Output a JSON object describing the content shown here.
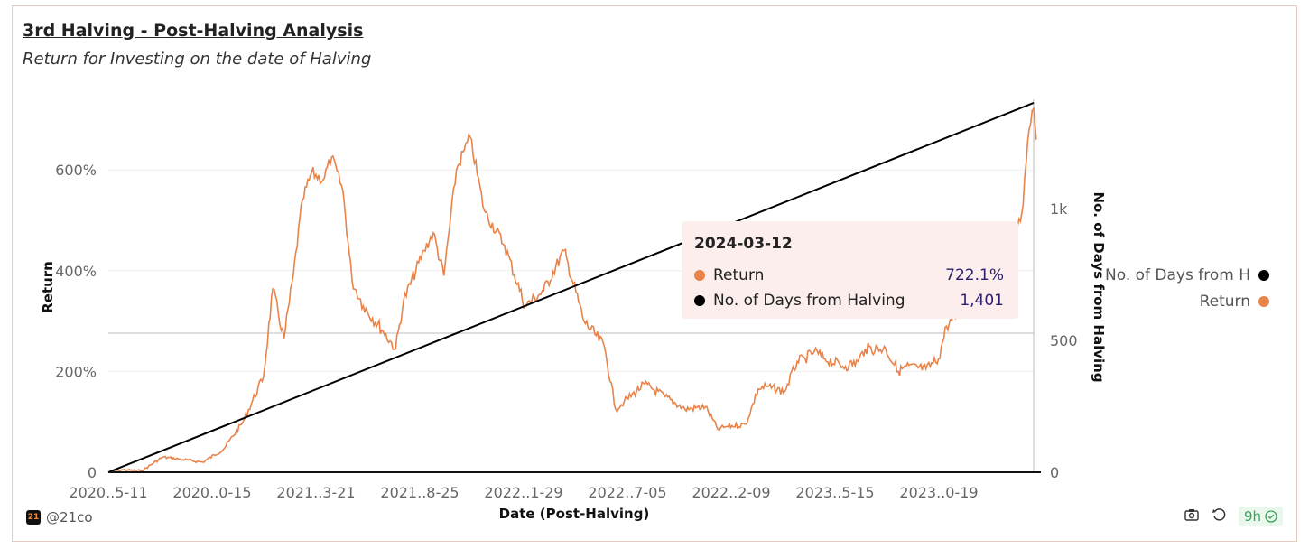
{
  "colors": {
    "return": "#e8834a",
    "days": "#000000",
    "tooltip_bg": "#fbeeec"
  },
  "header": {
    "title": "3rd Halving - Post-Halving Analysis",
    "subtitle": "Return for Investing on the date of Halving"
  },
  "tooltip": {
    "date": "2024-03-12",
    "rows": [
      {
        "label": "Return",
        "value": "722.1%",
        "color": "#e8834a"
      },
      {
        "label": "No. of Days from Halving",
        "value": "1,401",
        "color": "#000000"
      }
    ]
  },
  "legend": [
    {
      "label": "No. of Days from H",
      "color": "#000000"
    },
    {
      "label": "Return",
      "color": "#e8834a"
    }
  ],
  "footer": {
    "brand": "@21co",
    "brand_logo": "21",
    "refresh_badge": "9h",
    "icons": [
      "camera-icon",
      "refresh-icon",
      "check-circle-icon"
    ]
  },
  "chart_data": {
    "type": "line",
    "xlabel": "Date (Post-Halving)",
    "ylabel": "Return",
    "y2label": "No. of Days from Halving",
    "x_tick_labels": [
      "2020..5-11",
      "2020..0-15",
      "2021..3-21",
      "2021..8-25",
      "2022..1-29",
      "2022..7-05",
      "2022..2-09",
      "2023..5-15",
      "2023..0-19"
    ],
    "y_tick_labels": [
      "0",
      "200%",
      "400%",
      "600%"
    ],
    "y_ticks": [
      0,
      200,
      400,
      600
    ],
    "y2_tick_labels": [
      "0",
      "500",
      "1k"
    ],
    "y2_ticks": [
      0,
      500,
      1000
    ],
    "xlim": [
      "2020-05-11",
      "2024-03-16"
    ],
    "ylim": [
      0,
      720
    ],
    "y2lim": [
      0,
      1401
    ],
    "grid": true,
    "legend_position": "right",
    "series": [
      {
        "name": "Return",
        "axis": "left",
        "color": "#e8834a",
        "points": [
          [
            "2020-05-11",
            0
          ],
          [
            "2020-06-01",
            5
          ],
          [
            "2020-07-01",
            3
          ],
          [
            "2020-08-01",
            30
          ],
          [
            "2020-09-01",
            25
          ],
          [
            "2020-10-01",
            20
          ],
          [
            "2020-11-01",
            45
          ],
          [
            "2020-12-01",
            100
          ],
          [
            "2021-01-01",
            190
          ],
          [
            "2021-01-15",
            364
          ],
          [
            "2021-02-01",
            265
          ],
          [
            "2021-02-15",
            390
          ],
          [
            "2021-03-01",
            540
          ],
          [
            "2021-03-15",
            595
          ],
          [
            "2021-04-01",
            580
          ],
          [
            "2021-04-14",
            625
          ],
          [
            "2021-05-01",
            560
          ],
          [
            "2021-05-15",
            380
          ],
          [
            "2021-06-01",
            330
          ],
          [
            "2021-07-01",
            280
          ],
          [
            "2021-07-20",
            245
          ],
          [
            "2021-08-01",
            340
          ],
          [
            "2021-09-01",
            440
          ],
          [
            "2021-09-15",
            475
          ],
          [
            "2021-10-01",
            390
          ],
          [
            "2021-10-20",
            600
          ],
          [
            "2021-11-01",
            640
          ],
          [
            "2021-11-10",
            665
          ],
          [
            "2021-12-01",
            520
          ],
          [
            "2022-01-01",
            450
          ],
          [
            "2022-02-01",
            330
          ],
          [
            "2022-03-01",
            360
          ],
          [
            "2022-04-01",
            440
          ],
          [
            "2022-05-01",
            300
          ],
          [
            "2022-06-01",
            250
          ],
          [
            "2022-06-18",
            125
          ],
          [
            "2022-07-01",
            140
          ],
          [
            "2022-08-01",
            175
          ],
          [
            "2022-09-01",
            150
          ],
          [
            "2022-10-01",
            125
          ],
          [
            "2022-11-01",
            130
          ],
          [
            "2022-11-20",
            85
          ],
          [
            "2022-12-01",
            90
          ],
          [
            "2023-01-01",
            95
          ],
          [
            "2023-01-20",
            165
          ],
          [
            "2023-02-01",
            170
          ],
          [
            "2023-03-01",
            160
          ],
          [
            "2023-03-20",
            220
          ],
          [
            "2023-04-01",
            225
          ],
          [
            "2023-04-15",
            240
          ],
          [
            "2023-05-01",
            225
          ],
          [
            "2023-06-01",
            210
          ],
          [
            "2023-06-20",
            220
          ],
          [
            "2023-07-01",
            245
          ],
          [
            "2023-08-01",
            245
          ],
          [
            "2023-08-20",
            200
          ],
          [
            "2023-09-01",
            210
          ],
          [
            "2023-10-01",
            205
          ],
          [
            "2023-10-20",
            225
          ],
          [
            "2023-11-01",
            290
          ],
          [
            "2023-12-01",
            330
          ],
          [
            "2024-01-01",
            400
          ],
          [
            "2024-01-20",
            430
          ],
          [
            "2024-02-01",
            480
          ],
          [
            "2024-02-15",
            470
          ],
          [
            "2024-02-25",
            530
          ],
          [
            "2024-03-01",
            620
          ],
          [
            "2024-03-05",
            680
          ],
          [
            "2024-03-12",
            722.1
          ],
          [
            "2024-03-14",
            690
          ],
          [
            "2024-03-16",
            660
          ]
        ]
      },
      {
        "name": "No. of Days from Halving",
        "axis": "right",
        "color": "#000000",
        "points": [
          [
            "2020-05-11",
            0
          ],
          [
            "2024-03-12",
            1401
          ]
        ]
      }
    ],
    "hover": {
      "date": "2024-03-12",
      "return": 722.1,
      "days": 1401
    }
  }
}
